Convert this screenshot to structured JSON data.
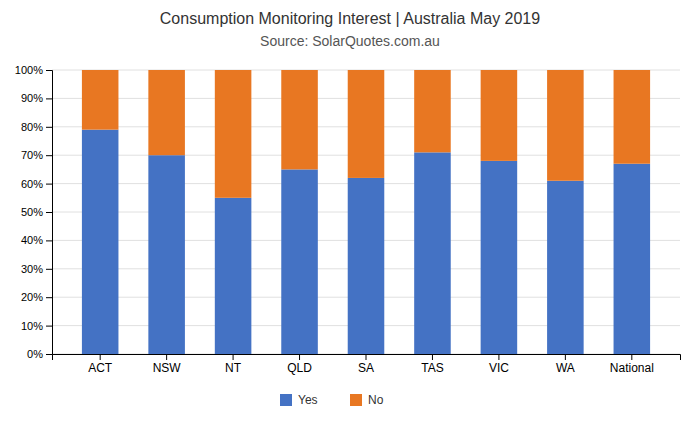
{
  "chart_data": {
    "type": "bar",
    "title": "Consumption Monitoring Interest | Australia May 2019",
    "subtitle": "Source: SolarQuotes.com.au",
    "categories": [
      "ACT",
      "NSW",
      "NT",
      "QLD",
      "SA",
      "TAS",
      "VIC",
      "WA",
      "National"
    ],
    "series": [
      {
        "name": "Yes",
        "color": "#4472C4",
        "values": [
          79,
          70,
          55,
          65,
          62,
          71,
          68,
          61,
          67
        ]
      },
      {
        "name": "No",
        "color": "#E87722",
        "values": [
          21,
          30,
          45,
          35,
          38,
          29,
          32,
          39,
          33
        ]
      }
    ],
    "stacked": true,
    "ylim": [
      0,
      100
    ],
    "yticks": [
      {
        "value": 0,
        "label": "0%"
      },
      {
        "value": 10,
        "label": "10%"
      },
      {
        "value": 20,
        "label": "20%"
      },
      {
        "value": 30,
        "label": "30%"
      },
      {
        "value": 40,
        "label": "40%"
      },
      {
        "value": 50,
        "label": "50%"
      },
      {
        "value": 60,
        "label": "60%"
      },
      {
        "value": 70,
        "label": "70%"
      },
      {
        "value": 80,
        "label": "80%"
      },
      {
        "value": 90,
        "label": "90%"
      },
      {
        "value": 100,
        "label": "100%"
      }
    ],
    "grid": true,
    "legend": "bottom"
  }
}
